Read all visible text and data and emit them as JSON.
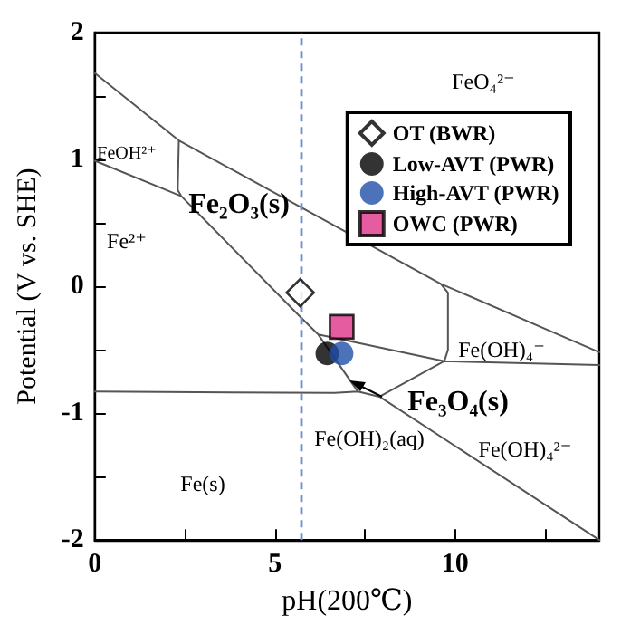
{
  "chart_data": {
    "type": "line",
    "xlabel": "pH(200℃)",
    "ylabel": "Potential (V vs. SHE)",
    "xlim": [
      0,
      14
    ],
    "ylim": [
      -2,
      2
    ],
    "xticks": [
      0,
      {
        "value": 2.5,
        "label": null
      },
      5,
      {
        "value": 7.5,
        "label": null
      },
      10,
      {
        "value": 12.5,
        "label": null
      }
    ],
    "yticks": [
      -2,
      {
        "value": -1.5,
        "label": null
      },
      -1,
      {
        "value": -0.5,
        "label": null
      },
      0,
      {
        "value": 0.5,
        "label": null
      },
      1,
      {
        "value": 1.5,
        "label": null
      },
      2
    ],
    "grid": false,
    "legend": "top right",
    "marker": "none",
    "line_style": "solid",
    "series": [
      {
        "color": "#555555",
        "x": [
          0,
          2.33,
          9.6,
          14,
          null,
          2.33,
          2.3,
          2.4,
          null,
          0,
          2.4,
          5.7,
          6.2,
          7.3,
          7.9,
          14,
          null,
          6.2,
          9.7,
          14,
          null,
          9.6,
          9.8,
          9.8,
          9.7,
          null,
          7.9,
          9.7,
          null,
          0,
          6.65,
          7.3
        ],
        "values": [
          1.68,
          1.15,
          0.02,
          -0.52,
          null,
          1.15,
          0.76,
          0.71,
          null,
          0.99,
          0.71,
          -0.24,
          -0.38,
          -0.83,
          -0.87,
          -2,
          null,
          -0.38,
          -0.59,
          -0.62,
          null,
          0.02,
          -0.05,
          -0.5,
          -0.59,
          null,
          -0.87,
          -0.59,
          null,
          -0.83,
          -0.84,
          -0.83
        ]
      },
      {
        "type": "scatter",
        "name": "OT (BWR)",
        "color": "#ffffff",
        "marker": "diamond",
        "x": [
          5.7
        ],
        "values": [
          -0.05
        ]
      },
      {
        "type": "scatter",
        "name": "Low-AVT (PWR)",
        "color": "#000000",
        "marker": "circle",
        "x": [
          6.45
        ],
        "values": [
          -0.53
        ]
      },
      {
        "type": "scatter",
        "name": "High-AVT (PWR)",
        "color": "#1f4fa8",
        "marker": "circle",
        "x": [
          6.85
        ],
        "values": [
          -0.53
        ]
      },
      {
        "type": "scatter",
        "name": "OWC (PWR)",
        "color": "#e0338a",
        "marker": "square",
        "x": [
          6.85
        ],
        "values": [
          -0.32
        ]
      }
    ],
    "ref_lines": [
      {
        "axis": "x",
        "value": 5.7,
        "color": "#6f8fd0",
        "line_style": "dashed"
      }
    ],
    "annotations": [
      "FeO₄²⁻",
      "FeOH²⁺",
      "Fe²⁺",
      "Fe₂O₃(s)",
      "Fe(OH)₄⁻",
      "Fe₃O₄(s)",
      "Fe(OH)₂(aq)",
      "Fe(OH)₄²⁻",
      "Fe(s)"
    ]
  }
}
